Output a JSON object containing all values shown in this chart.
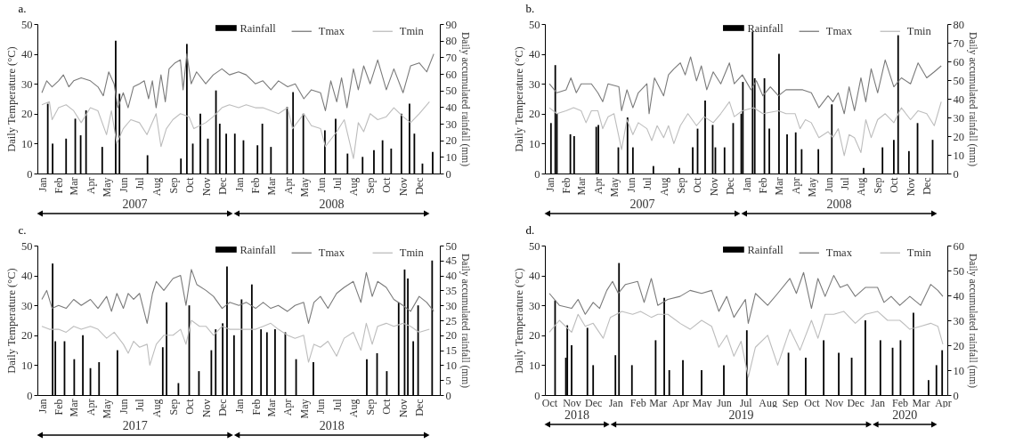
{
  "chart_data": [
    {
      "type": "line",
      "title": "a.",
      "ylabel": "Daily Temperature (°C)",
      "y2label": "Daily accumulated rainfall (mm)",
      "legend": "top right",
      "xlim": [
        "2007-01-01",
        "2008-12-31"
      ],
      "xticks": [
        {
          "value": "2007-01-01",
          "label": "Jan"
        },
        {
          "value": "2007-02-01",
          "label": "Feb"
        },
        {
          "value": "2007-03-01",
          "label": "Mar"
        },
        {
          "value": "2007-04-01",
          "label": "Apr"
        },
        {
          "value": "2007-05-01",
          "label": "May"
        },
        {
          "value": "2007-06-01",
          "label": "Jun"
        },
        {
          "value": "2007-07-01",
          "label": "Jul"
        },
        {
          "value": "2007-08-01",
          "label": "Aug"
        },
        {
          "value": "2007-09-01",
          "label": "Sep"
        },
        {
          "value": "2007-10-01",
          "label": "Oct"
        },
        {
          "value": "2007-11-01",
          "label": "Nov"
        },
        {
          "value": "2007-12-01",
          "label": "Dec"
        },
        {
          "value": "2008-01-01",
          "label": "Jan"
        },
        {
          "value": "2008-02-01",
          "label": "Feb"
        },
        {
          "value": "2008-03-01",
          "label": "Mar"
        },
        {
          "value": "2008-04-01",
          "label": "Apr"
        },
        {
          "value": "2008-05-01",
          "label": "May"
        },
        {
          "value": "2008-06-01",
          "label": "Jun"
        },
        {
          "value": "2008-07-01",
          "label": "Jul"
        },
        {
          "value": "2008-08-01",
          "label": "Aug"
        },
        {
          "value": "2008-09-01",
          "label": "Sep"
        },
        {
          "value": "2008-10-01",
          "label": "Oct"
        },
        {
          "value": "2008-11-01",
          "label": "Nov"
        },
        {
          "value": "2008-12-01",
          "label": "Dec"
        }
      ],
      "annotations": [
        "2007",
        "2008"
      ],
      "ylim": [
        0,
        50
      ],
      "yticks": [
        0,
        10,
        20,
        30,
        40,
        50
      ],
      "y2lim": [
        0,
        90
      ],
      "y2ticks": [
        0,
        10,
        20,
        30,
        40,
        50,
        60,
        70,
        80,
        90
      ],
      "series": [
        {
          "name": "Rainfall",
          "type": "bar",
          "axis": "y2",
          "color": "#000000",
          "x": [
            "2007-01-12",
            "2007-01-21",
            "2007-02-15",
            "2007-03-04",
            "2007-03-14",
            "2007-03-24",
            "2007-04-23",
            "2007-05-18",
            "2007-05-25",
            "2007-07-16",
            "2007-09-16",
            "2007-09-27",
            "2007-10-08",
            "2007-10-22",
            "2007-11-05",
            "2007-11-20",
            "2007-11-27",
            "2007-12-09",
            "2007-12-25",
            "2008-01-10",
            "2008-02-05",
            "2008-02-14",
            "2008-03-01",
            "2008-03-31",
            "2008-04-11",
            "2008-04-30",
            "2008-06-09",
            "2008-06-29",
            "2008-07-21",
            "2008-08-18",
            "2008-09-08",
            "2008-09-24",
            "2008-10-10",
            "2008-10-29",
            "2008-11-13",
            "2008-11-22",
            "2008-12-07",
            "2008-12-26"
          ],
          "values": [
            42,
            18,
            21,
            33,
            23,
            38,
            16,
            80,
            48,
            11,
            9,
            78,
            18,
            36,
            21,
            50,
            30,
            24,
            24,
            20,
            17,
            30,
            16,
            40,
            49,
            36,
            26,
            33,
            12,
            10,
            14,
            20,
            15,
            36,
            42,
            24,
            6,
            13
          ]
        },
        {
          "name": "Tmax",
          "color": "#7a7a7a",
          "x": [
            "2007-01-01",
            "2007-01-10",
            "2007-01-20",
            "2007-02-01",
            "2007-02-10",
            "2007-02-20",
            "2007-03-01",
            "2007-03-15",
            "2007-04-01",
            "2007-04-15",
            "2007-04-25",
            "2007-05-05",
            "2007-05-15",
            "2007-05-22",
            "2007-06-01",
            "2007-06-10",
            "2007-06-20",
            "2007-07-01",
            "2007-07-10",
            "2007-07-18",
            "2007-07-25",
            "2007-08-01",
            "2007-08-10",
            "2007-08-18",
            "2007-08-25",
            "2007-09-05",
            "2007-09-15",
            "2007-09-20",
            "2007-09-27",
            "2007-10-05",
            "2007-10-15",
            "2007-11-01",
            "2007-11-15",
            "2007-12-01",
            "2007-12-15",
            "2008-01-01",
            "2008-01-15",
            "2008-02-01",
            "2008-02-15",
            "2008-03-01",
            "2008-03-15",
            "2008-04-01",
            "2008-04-15",
            "2008-05-01",
            "2008-05-15",
            "2008-06-01",
            "2008-06-10",
            "2008-06-20",
            "2008-07-01",
            "2008-07-10",
            "2008-07-20",
            "2008-08-01",
            "2008-08-10",
            "2008-08-20",
            "2008-09-01",
            "2008-09-15",
            "2008-10-01",
            "2008-10-15",
            "2008-11-01",
            "2008-11-15",
            "2008-12-01",
            "2008-12-15",
            "2008-12-28"
          ],
          "values": [
            27,
            31,
            29,
            31,
            33,
            29,
            31,
            32,
            31,
            29,
            26,
            34,
            30,
            22,
            27,
            22,
            29,
            30,
            31,
            25,
            31,
            22,
            33,
            24,
            35,
            37,
            38,
            28,
            40,
            30,
            34,
            30,
            33,
            35,
            33,
            34,
            33,
            30,
            31,
            28,
            31,
            29,
            30,
            25,
            28,
            27,
            21,
            31,
            24,
            32,
            22,
            35,
            28,
            36,
            30,
            38,
            28,
            35,
            27,
            36,
            37,
            34,
            40
          ]
        },
        {
          "name": "Tmin",
          "color": "#bdbdbd",
          "x": [
            "2007-01-01",
            "2007-01-15",
            "2007-01-20",
            "2007-02-01",
            "2007-02-15",
            "2007-03-01",
            "2007-03-15",
            "2007-04-01",
            "2007-04-15",
            "2007-05-01",
            "2007-05-10",
            "2007-05-20",
            "2007-06-01",
            "2007-06-15",
            "2007-07-01",
            "2007-07-15",
            "2007-08-01",
            "2007-08-10",
            "2007-08-20",
            "2007-09-01",
            "2007-09-15",
            "2007-10-01",
            "2007-10-10",
            "2007-11-01",
            "2007-11-15",
            "2007-12-01",
            "2007-12-15",
            "2008-01-01",
            "2008-01-15",
            "2008-02-01",
            "2008-02-15",
            "2008-03-01",
            "2008-03-15",
            "2008-04-01",
            "2008-04-10",
            "2008-05-01",
            "2008-05-15",
            "2008-06-01",
            "2008-06-10",
            "2008-07-01",
            "2008-07-15",
            "2008-08-01",
            "2008-08-10",
            "2008-08-20",
            "2008-09-01",
            "2008-09-15",
            "2008-10-01",
            "2008-10-15",
            "2008-11-01",
            "2008-11-15",
            "2008-12-01",
            "2008-12-20"
          ],
          "values": [
            23,
            24,
            18,
            22,
            23,
            21,
            17,
            22,
            21,
            13,
            21,
            10,
            15,
            18,
            17,
            13,
            20,
            9,
            15,
            18,
            20,
            19,
            15,
            17,
            19,
            22,
            23,
            22,
            23,
            22,
            22,
            21,
            20,
            22,
            15,
            20,
            16,
            15,
            9,
            14,
            18,
            5,
            17,
            14,
            20,
            18,
            19,
            22,
            19,
            17,
            20,
            24
          ]
        }
      ]
    },
    {
      "type": "line",
      "title": "b.",
      "ylabel": "Daily Temperature (°C)",
      "y2label": "Daily accumulated rainfall (mm)",
      "legend": "top right",
      "xlim": [
        "2007-01-01",
        "2008-12-31"
      ],
      "xticks": [
        {
          "value": "2007-01-01",
          "label": "Jan"
        },
        {
          "value": "2007-02-01",
          "label": "Feb"
        },
        {
          "value": "2007-03-01",
          "label": "Mar"
        },
        {
          "value": "2007-04-01",
          "label": "Apr"
        },
        {
          "value": "2007-05-01",
          "label": "May"
        },
        {
          "value": "2007-06-01",
          "label": "Jun"
        },
        {
          "value": "2007-07-01",
          "label": "Jul"
        },
        {
          "value": "2007-08-01",
          "label": "Aug"
        },
        {
          "value": "2007-09-01",
          "label": "Sep"
        },
        {
          "value": "2007-10-01",
          "label": "Oct"
        },
        {
          "value": "2007-11-01",
          "label": "Nov"
        },
        {
          "value": "2007-12-01",
          "label": "Dec"
        },
        {
          "value": "2008-01-01",
          "label": "Jan"
        },
        {
          "value": "2008-02-01",
          "label": "Feb"
        },
        {
          "value": "2008-03-01",
          "label": "Mar"
        },
        {
          "value": "2008-04-01",
          "label": "Apr"
        },
        {
          "value": "2008-05-01",
          "label": "May"
        },
        {
          "value": "2008-06-01",
          "label": "Jun"
        },
        {
          "value": "2008-07-01",
          "label": "Jul"
        },
        {
          "value": "2008-08-01",
          "label": "Aug"
        },
        {
          "value": "2008-09-01",
          "label": "Sep"
        },
        {
          "value": "2008-10-01",
          "label": "Oct"
        },
        {
          "value": "2008-11-01",
          "label": "Nov"
        },
        {
          "value": "2008-12-01",
          "label": "Dec"
        }
      ],
      "annotations": [
        "2007",
        "2008"
      ],
      "ylim": [
        0,
        50
      ],
      "yticks": [
        0,
        10,
        20,
        30,
        40,
        50
      ],
      "y2lim": [
        0,
        80
      ],
      "y2ticks": [
        0,
        10,
        20,
        30,
        40,
        50,
        60,
        70,
        80
      ],
      "series": [
        {
          "name": "Rainfall",
          "type": "bar",
          "axis": "y2",
          "color": "#000000",
          "x": [
            "2007-01-04",
            "2007-01-12",
            "2007-01-15",
            "2007-02-09",
            "2007-02-16",
            "2007-03-29",
            "2007-04-02",
            "2007-05-09",
            "2007-05-26",
            "2007-06-05",
            "2007-07-13",
            "2007-08-30",
            "2007-09-24",
            "2007-10-03",
            "2007-10-17",
            "2007-10-31",
            "2007-11-05",
            "2007-11-22",
            "2007-12-08",
            "2007-12-23",
            "2007-12-26",
            "2008-01-13",
            "2008-01-17",
            "2008-02-04",
            "2008-02-13",
            "2008-03-02",
            "2008-03-17",
            "2008-04-02",
            "2008-04-13",
            "2008-05-14",
            "2008-06-08",
            "2008-08-06",
            "2008-09-10",
            "2008-10-01",
            "2008-10-09",
            "2008-10-29",
            "2008-11-14",
            "2008-12-12"
          ],
          "values": [
            27,
            58,
            32,
            21,
            20,
            25,
            26,
            14,
            30,
            14,
            4,
            3,
            14,
            24,
            39,
            26,
            14,
            14,
            27,
            32,
            49,
            76,
            51,
            51,
            24,
            64,
            21,
            22,
            13,
            13,
            37,
            3,
            14,
            18,
            74,
            12,
            27,
            18
          ]
        },
        {
          "name": "Tmax",
          "color": "#7a7a7a",
          "x": [
            "2007-01-01",
            "2007-01-15",
            "2007-02-01",
            "2007-02-10",
            "2007-02-20",
            "2007-03-01",
            "2007-03-20",
            "2007-04-01",
            "2007-04-10",
            "2007-04-20",
            "2007-05-10",
            "2007-05-15",
            "2007-05-25",
            "2007-06-05",
            "2007-06-15",
            "2007-07-01",
            "2007-07-05",
            "2007-07-15",
            "2007-08-01",
            "2007-08-10",
            "2007-08-20",
            "2007-09-01",
            "2007-09-10",
            "2007-09-20",
            "2007-10-01",
            "2007-10-10",
            "2007-10-20",
            "2007-11-01",
            "2007-11-15",
            "2007-12-01",
            "2007-12-10",
            "2007-12-25",
            "2008-01-10",
            "2008-01-20",
            "2008-02-01",
            "2008-02-15",
            "2008-03-01",
            "2008-03-15",
            "2008-04-01",
            "2008-04-15",
            "2008-05-01",
            "2008-05-15",
            "2008-06-01",
            "2008-06-10",
            "2008-06-20",
            "2008-07-01",
            "2008-07-10",
            "2008-07-20",
            "2008-08-01",
            "2008-08-10",
            "2008-08-20",
            "2008-09-01",
            "2008-09-15",
            "2008-10-01",
            "2008-10-15",
            "2008-11-01",
            "2008-11-15",
            "2008-12-01",
            "2008-12-15",
            "2008-12-28"
          ],
          "values": [
            30,
            27,
            28,
            32,
            27,
            30,
            30,
            27,
            24,
            30,
            29,
            21,
            28,
            22,
            27,
            30,
            20,
            32,
            26,
            33,
            35,
            37,
            33,
            39,
            31,
            36,
            28,
            34,
            30,
            37,
            30,
            33,
            28,
            31,
            26,
            29,
            26,
            28,
            28,
            28,
            27,
            22,
            26,
            24,
            27,
            20,
            29,
            21,
            32,
            24,
            35,
            27,
            38,
            29,
            32,
            30,
            37,
            32,
            34,
            36
          ]
        },
        {
          "name": "Tmin",
          "color": "#bdbdbd",
          "x": [
            "2007-01-01",
            "2007-01-15",
            "2007-02-01",
            "2007-02-15",
            "2007-03-01",
            "2007-03-10",
            "2007-03-20",
            "2007-04-01",
            "2007-04-10",
            "2007-04-20",
            "2007-05-01",
            "2007-05-15",
            "2007-05-25",
            "2007-06-05",
            "2007-06-15",
            "2007-07-01",
            "2007-07-10",
            "2007-07-20",
            "2007-08-01",
            "2007-08-10",
            "2007-08-20",
            "2007-09-01",
            "2007-09-15",
            "2007-10-01",
            "2007-10-15",
            "2007-11-01",
            "2007-11-15",
            "2007-12-01",
            "2007-12-10",
            "2007-12-25",
            "2008-01-15",
            "2008-02-01",
            "2008-03-01",
            "2008-03-15",
            "2008-04-01",
            "2008-04-10",
            "2008-04-20",
            "2008-05-01",
            "2008-05-15",
            "2008-06-01",
            "2008-06-10",
            "2008-06-20",
            "2008-07-01",
            "2008-07-10",
            "2008-07-20",
            "2008-08-01",
            "2008-08-10",
            "2008-08-20",
            "2008-09-01",
            "2008-09-15",
            "2008-10-01",
            "2008-10-15",
            "2008-11-01",
            "2008-11-15",
            "2008-12-01",
            "2008-12-15",
            "2008-12-28"
          ],
          "values": [
            22,
            20,
            21,
            22,
            21,
            17,
            21,
            21,
            15,
            19,
            20,
            8,
            18,
            13,
            17,
            15,
            11,
            16,
            12,
            16,
            10,
            16,
            20,
            16,
            19,
            17,
            20,
            24,
            19,
            21,
            22,
            20,
            21,
            20,
            20,
            15,
            18,
            17,
            12,
            14,
            12,
            15,
            6,
            13,
            12,
            7,
            18,
            12,
            18,
            20,
            17,
            22,
            18,
            21,
            20,
            16,
            24
          ]
        }
      ]
    },
    {
      "type": "line",
      "title": "c.",
      "ylabel": "Daily Temperature (°C)",
      "y2label": "Daily accumulated rainfall (mm)",
      "legend": "top right",
      "xlim": [
        "2017-01-01",
        "2018-12-31"
      ],
      "xticks": [
        {
          "value": "2017-01-01",
          "label": "Jan"
        },
        {
          "value": "2017-02-01",
          "label": "Feb"
        },
        {
          "value": "2017-03-01",
          "label": "Mar"
        },
        {
          "value": "2017-04-01",
          "label": "Apr"
        },
        {
          "value": "2017-05-01",
          "label": "May"
        },
        {
          "value": "2017-06-01",
          "label": "Jun"
        },
        {
          "value": "2017-07-01",
          "label": "Jul"
        },
        {
          "value": "2017-08-01",
          "label": "Aug"
        },
        {
          "value": "2017-09-01",
          "label": "Sep"
        },
        {
          "value": "2017-10-01",
          "label": "Oct"
        },
        {
          "value": "2017-11-01",
          "label": "Nov"
        },
        {
          "value": "2017-12-01",
          "label": "Dec"
        },
        {
          "value": "2018-01-01",
          "label": "Jan"
        },
        {
          "value": "2018-02-01",
          "label": "Feb"
        },
        {
          "value": "2018-03-01",
          "label": "Mar"
        },
        {
          "value": "2018-04-01",
          "label": "Apr"
        },
        {
          "value": "2018-05-01",
          "label": "May"
        },
        {
          "value": "2018-06-01",
          "label": "Jun"
        },
        {
          "value": "2018-07-01",
          "label": "Jul"
        },
        {
          "value": "2018-08-01",
          "label": "Aug"
        },
        {
          "value": "2018-09-01",
          "label": "Sep"
        },
        {
          "value": "2018-10-01",
          "label": "Oct"
        },
        {
          "value": "2018-11-01",
          "label": "Nov"
        },
        {
          "value": "2018-12-01",
          "label": "Dec"
        }
      ],
      "annotations": [
        "2017",
        "2018"
      ],
      "ylim": [
        0,
        50
      ],
      "yticks": [
        0,
        10,
        20,
        30,
        40,
        50
      ],
      "y2lim": [
        0,
        50
      ],
      "y2ticks": [
        0,
        5,
        10,
        15,
        20,
        25,
        30,
        35,
        40,
        45,
        50
      ],
      "series": [
        {
          "name": "Rainfall",
          "type": "bar",
          "axis": "y2",
          "color": "#000000",
          "x": [
            "2017-01-21",
            "2017-01-26",
            "2017-02-12",
            "2017-03-02",
            "2017-03-18",
            "2017-04-01",
            "2017-04-17",
            "2017-05-21",
            "2017-08-13",
            "2017-08-20",
            "2017-09-11",
            "2017-10-01",
            "2017-10-19",
            "2017-11-11",
            "2017-11-19",
            "2017-12-02",
            "2017-12-10",
            "2017-12-23",
            "2018-01-06",
            "2018-01-25",
            "2018-02-11",
            "2018-02-22",
            "2018-03-09",
            "2018-03-28",
            "2018-04-17",
            "2018-05-19",
            "2018-08-26",
            "2018-09-14",
            "2018-10-02",
            "2018-10-24",
            "2018-11-04",
            "2018-11-10",
            "2018-11-20",
            "2018-11-29",
            "2018-12-25"
          ],
          "values": [
            44,
            18,
            18,
            12,
            20,
            9,
            11,
            15,
            16,
            31,
            4,
            30,
            8,
            15,
            22,
            24,
            43,
            20,
            32,
            37,
            22,
            21,
            22,
            21,
            12,
            11,
            12,
            14,
            8,
            31,
            42,
            39,
            18,
            30,
            45
          ]
        },
        {
          "name": "Tmax",
          "color": "#7a7a7a",
          "x": [
            "2017-01-01",
            "2017-01-10",
            "2017-01-20",
            "2017-02-01",
            "2017-02-15",
            "2017-03-01",
            "2017-03-15",
            "2017-04-01",
            "2017-04-15",
            "2017-05-01",
            "2017-05-10",
            "2017-05-20",
            "2017-06-01",
            "2017-06-10",
            "2017-06-20",
            "2017-07-01",
            "2017-07-15",
            "2017-07-25",
            "2017-08-01",
            "2017-08-15",
            "2017-09-01",
            "2017-09-15",
            "2017-09-25",
            "2017-10-05",
            "2017-10-15",
            "2017-11-01",
            "2017-11-15",
            "2017-12-01",
            "2017-12-15",
            "2018-01-01",
            "2018-01-15",
            "2018-02-01",
            "2018-02-15",
            "2018-03-01",
            "2018-03-15",
            "2018-04-01",
            "2018-04-15",
            "2018-05-01",
            "2018-05-10",
            "2018-05-20",
            "2018-06-01",
            "2018-06-15",
            "2018-07-01",
            "2018-07-15",
            "2018-08-01",
            "2018-08-15",
            "2018-08-25",
            "2018-09-05",
            "2018-09-15",
            "2018-10-01",
            "2018-10-15",
            "2018-11-01",
            "2018-11-15",
            "2018-12-01",
            "2018-12-15",
            "2018-12-28"
          ],
          "values": [
            32,
            35,
            29,
            30,
            29,
            32,
            30,
            32,
            29,
            33,
            28,
            34,
            29,
            34,
            32,
            34,
            24,
            34,
            38,
            35,
            39,
            40,
            30,
            42,
            37,
            35,
            33,
            29,
            31,
            30,
            31,
            29,
            31,
            29,
            30,
            28,
            30,
            31,
            24,
            31,
            33,
            29,
            34,
            36,
            38,
            31,
            41,
            33,
            38,
            36,
            32,
            30,
            28,
            33,
            31,
            28
          ]
        },
        {
          "name": "Tmin",
          "color": "#bdbdbd",
          "x": [
            "2017-01-01",
            "2017-01-15",
            "2017-02-01",
            "2017-02-15",
            "2017-03-01",
            "2017-03-15",
            "2017-04-01",
            "2017-04-15",
            "2017-05-01",
            "2017-05-15",
            "2017-06-01",
            "2017-06-10",
            "2017-06-20",
            "2017-07-01",
            "2017-07-15",
            "2017-07-20",
            "2017-08-01",
            "2017-08-15",
            "2017-09-01",
            "2017-09-15",
            "2017-09-25",
            "2017-10-05",
            "2017-10-20",
            "2017-11-01",
            "2017-11-15",
            "2017-12-01",
            "2017-12-15",
            "2018-01-01",
            "2018-01-15",
            "2018-02-01",
            "2018-02-15",
            "2018-03-01",
            "2018-03-15",
            "2018-04-01",
            "2018-04-15",
            "2018-05-01",
            "2018-05-10",
            "2018-05-20",
            "2018-06-01",
            "2018-06-15",
            "2018-07-01",
            "2018-07-15",
            "2018-08-01",
            "2018-08-15",
            "2018-08-25",
            "2018-09-05",
            "2018-09-15",
            "2018-10-01",
            "2018-10-15",
            "2018-11-01",
            "2018-11-15",
            "2018-12-01",
            "2018-12-20"
          ],
          "values": [
            23,
            22,
            22,
            21,
            23,
            22,
            23,
            22,
            19,
            21,
            17,
            14,
            18,
            16,
            17,
            10,
            17,
            20,
            20,
            22,
            17,
            25,
            23,
            23,
            20,
            23,
            22,
            22,
            22,
            22,
            23,
            24,
            22,
            20,
            19,
            20,
            11,
            17,
            16,
            18,
            13,
            19,
            21,
            15,
            24,
            17,
            23,
            24,
            23,
            24,
            23,
            21,
            22
          ]
        }
      ]
    },
    {
      "type": "line",
      "title": "d.",
      "ylabel": "Daily Temperature (°C)",
      "y2label": "Daily accumulated rainfall (mm)",
      "legend": "top right",
      "xlim": [
        "2018-10-01",
        "2020-04-01"
      ],
      "xticks": [
        {
          "value": "2018-10-01",
          "label": "Oct"
        },
        {
          "value": "2018-11-01",
          "label": "Nov"
        },
        {
          "value": "2018-12-01",
          "label": "Dec"
        },
        {
          "value": "2019-01-01",
          "label": "Jan"
        },
        {
          "value": "2019-02-01",
          "label": "Feb"
        },
        {
          "value": "2019-03-01",
          "label": "Mar"
        },
        {
          "value": "2019-04-01",
          "label": "Apr"
        },
        {
          "value": "2019-05-01",
          "label": "May"
        },
        {
          "value": "2019-06-01",
          "label": "Jun"
        },
        {
          "value": "2019-07-01",
          "label": "Jul"
        },
        {
          "value": "2019-08-01",
          "label": "Aug"
        },
        {
          "value": "2019-09-01",
          "label": "Sep"
        },
        {
          "value": "2019-10-01",
          "label": "Oct"
        },
        {
          "value": "2019-11-01",
          "label": "Nov"
        },
        {
          "value": "2019-12-01",
          "label": "Dec"
        },
        {
          "value": "2020-01-01",
          "label": "Jan"
        },
        {
          "value": "2020-02-01",
          "label": "Feb"
        },
        {
          "value": "2020-03-01",
          "label": "Mar"
        },
        {
          "value": "2020-04-01",
          "label": "Apr"
        }
      ],
      "annotations": [
        "2018",
        "2019",
        "2020"
      ],
      "ylim": [
        0,
        50
      ],
      "yticks": [
        0,
        10,
        20,
        30,
        40,
        50
      ],
      "y2lim": [
        0,
        60
      ],
      "y2ticks": [
        0,
        10,
        20,
        30,
        40,
        50,
        60
      ],
      "series": [
        {
          "name": "Rainfall",
          "type": "bar",
          "axis": "y2",
          "color": "#000000",
          "x": [
            "2018-10-09",
            "2018-10-24",
            "2018-10-26",
            "2018-11-01",
            "2018-11-23",
            "2018-12-01",
            "2019-01-01",
            "2019-01-06",
            "2019-01-24",
            "2019-02-26",
            "2019-03-10",
            "2019-03-17",
            "2019-04-05",
            "2019-05-01",
            "2019-06-01",
            "2019-07-03",
            "2019-08-30",
            "2019-09-23",
            "2019-10-18",
            "2019-11-08",
            "2019-11-26",
            "2019-12-15",
            "2020-01-05",
            "2020-01-22",
            "2020-02-02",
            "2020-02-20",
            "2020-03-12",
            "2020-03-23",
            "2020-03-31"
          ],
          "values": [
            38,
            15,
            28,
            20,
            27,
            12,
            16,
            53,
            12,
            22,
            39,
            10,
            14,
            10,
            12,
            26,
            17,
            15,
            22,
            17,
            15,
            30,
            22,
            19,
            22,
            33,
            6,
            12,
            18
          ]
        },
        {
          "name": "Tmax",
          "color": "#7a7a7a",
          "x": [
            "2018-10-01",
            "2018-10-15",
            "2018-11-01",
            "2018-11-10",
            "2018-11-20",
            "2018-12-01",
            "2018-12-10",
            "2018-12-20",
            "2018-12-28",
            "2019-01-05",
            "2019-01-15",
            "2019-02-01",
            "2019-02-10",
            "2019-02-20",
            "2019-03-01",
            "2019-03-15",
            "2019-04-01",
            "2019-04-15",
            "2019-05-01",
            "2019-05-15",
            "2019-05-25",
            "2019-06-05",
            "2019-06-15",
            "2019-07-01",
            "2019-07-05",
            "2019-07-15",
            "2019-08-01",
            "2019-08-15",
            "2019-09-01",
            "2019-09-10",
            "2019-09-20",
            "2019-10-01",
            "2019-10-10",
            "2019-10-20",
            "2019-11-01",
            "2019-11-10",
            "2019-11-20",
            "2019-12-01",
            "2019-12-15",
            "2020-01-01",
            "2020-01-10",
            "2020-01-20",
            "2020-02-01",
            "2020-02-15",
            "2020-03-01",
            "2020-03-15",
            "2020-03-25",
            "2020-04-01"
          ],
          "values": [
            34,
            30,
            29,
            32,
            27,
            31,
            29,
            35,
            38,
            34,
            37,
            38,
            31,
            39,
            30,
            32,
            33,
            35,
            34,
            35,
            28,
            33,
            26,
            32,
            24,
            34,
            30,
            34,
            39,
            34,
            41,
            29,
            39,
            33,
            40,
            36,
            37,
            33,
            36,
            36,
            31,
            33,
            30,
            33,
            30,
            37,
            35,
            33
          ]
        },
        {
          "name": "Tmin",
          "color": "#bdbdbd",
          "x": [
            "2018-10-01",
            "2018-10-15",
            "2018-11-01",
            "2018-11-10",
            "2018-11-20",
            "2018-12-01",
            "2018-12-15",
            "2018-12-25",
            "2019-01-10",
            "2019-01-25",
            "2019-02-05",
            "2019-02-20",
            "2019-03-01",
            "2019-03-15",
            "2019-04-01",
            "2019-04-15",
            "2019-05-01",
            "2019-05-15",
            "2019-05-25",
            "2019-06-05",
            "2019-06-15",
            "2019-06-25",
            "2019-07-05",
            "2019-07-15",
            "2019-08-01",
            "2019-08-15",
            "2019-09-01",
            "2019-09-15",
            "2019-10-01",
            "2019-10-10",
            "2019-10-20",
            "2019-11-01",
            "2019-11-15",
            "2019-12-01",
            "2019-12-15",
            "2020-01-01",
            "2020-01-15",
            "2020-02-01",
            "2020-02-15",
            "2020-03-01",
            "2020-03-15",
            "2020-03-25",
            "2020-04-01"
          ],
          "values": [
            21,
            25,
            21,
            27,
            23,
            24,
            19,
            26,
            28,
            27,
            28,
            26,
            27,
            27,
            24,
            22,
            25,
            23,
            16,
            20,
            13,
            18,
            6,
            16,
            20,
            10,
            22,
            15,
            25,
            19,
            27,
            27,
            28,
            24,
            27,
            28,
            25,
            25,
            22,
            23,
            24,
            23,
            17
          ]
        }
      ]
    }
  ]
}
